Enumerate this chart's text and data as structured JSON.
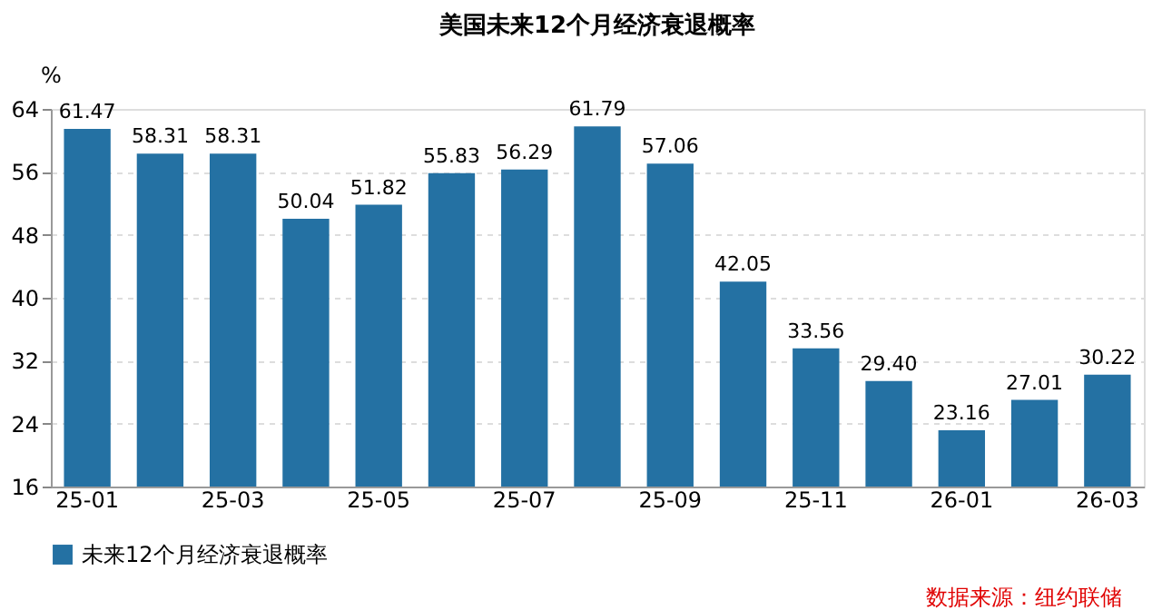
{
  "chart_data": {
    "type": "bar",
    "title": "美国未来12个月经济衰退概率",
    "ylabel": "%",
    "categories": [
      "25-01",
      null,
      "25-03",
      null,
      "25-05",
      null,
      "25-07",
      null,
      "25-09",
      null,
      "25-11",
      null,
      "26-01",
      null,
      "26-03"
    ],
    "series": [
      {
        "name": "未来12个月经济衰退概率",
        "color": "#2471a3",
        "values": [
          61.47,
          58.31,
          58.31,
          50.04,
          51.82,
          55.83,
          56.29,
          61.79,
          57.06,
          42.05,
          33.56,
          29.4,
          23.16,
          27.01,
          30.22
        ],
        "value_labels": [
          "61.47",
          "58.31",
          "58.31",
          "50.04",
          "51.82",
          "55.83",
          "56.29",
          "61.79",
          "57.06",
          "42.05",
          "33.56",
          "29.40",
          "23.16",
          "27.01",
          "30.22"
        ]
      }
    ],
    "ylim": [
      16,
      64
    ],
    "yticks": [
      16,
      24,
      32,
      40,
      48,
      56,
      64
    ],
    "grid": "y",
    "legend": "bottom",
    "annotations": [
      "数据来源：纽约联储"
    ]
  }
}
